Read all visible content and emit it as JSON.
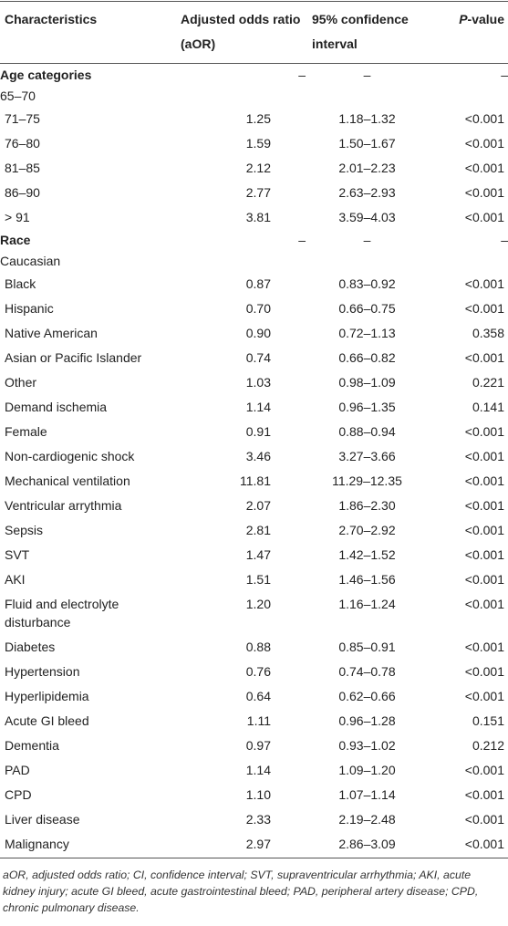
{
  "table": {
    "header": [
      "Characteristics",
      "Adjusted odds ratio (aOR)",
      "95% confidence interval",
      "P-value"
    ],
    "rows": [
      {
        "cells": [
          "Age categories",
          "–",
          "–",
          "–"
        ],
        "group": true
      },
      {
        "cells": [
          "65–70"
        ]
      },
      {
        "cells": [
          "71–75",
          "1.25",
          "1.18–1.32",
          "<0.001"
        ]
      },
      {
        "cells": [
          "76–80",
          "1.59",
          "1.50–1.67",
          "<0.001"
        ]
      },
      {
        "cells": [
          "81–85",
          "2.12",
          "2.01–2.23",
          "<0.001"
        ]
      },
      {
        "cells": [
          "86–90",
          "2.77",
          "2.63–2.93",
          "<0.001"
        ]
      },
      {
        "cells": [
          "> 91",
          "3.81",
          "3.59–4.03",
          "<0.001"
        ]
      },
      {
        "cells": [
          "Race",
          "–",
          "–",
          "–"
        ],
        "group": true
      },
      {
        "cells": [
          "Caucasian"
        ]
      },
      {
        "cells": [
          "Black",
          "0.87",
          "0.83–0.92",
          "<0.001"
        ]
      },
      {
        "cells": [
          "Hispanic",
          "0.70",
          "0.66–0.75",
          "<0.001"
        ]
      },
      {
        "cells": [
          "Native American",
          "0.90",
          "0.72–1.13",
          "0.358"
        ]
      },
      {
        "cells": [
          "Asian or Pacific Islander",
          "0.74",
          "0.66–0.82",
          "<0.001"
        ]
      },
      {
        "cells": [
          "Other",
          "1.03",
          "0.98–1.09",
          "0.221"
        ]
      },
      {
        "cells": [
          "Demand ischemia",
          "1.14",
          "0.96–1.35",
          "0.141"
        ]
      },
      {
        "cells": [
          "Female",
          "0.91",
          "0.88–0.94",
          "<0.001"
        ]
      },
      {
        "cells": [
          "Non-cardiogenic shock",
          "3.46",
          "3.27–3.66",
          "<0.001"
        ]
      },
      {
        "cells": [
          "Mechanical ventilation",
          "11.81",
          "11.29–12.35",
          "<0.001"
        ]
      },
      {
        "cells": [
          "Ventricular arrythmia",
          "2.07",
          "1.86–2.30",
          "<0.001"
        ]
      },
      {
        "cells": [
          "Sepsis",
          "2.81",
          "2.70–2.92",
          "<0.001"
        ]
      },
      {
        "cells": [
          "SVT",
          "1.47",
          "1.42–1.52",
          "<0.001"
        ]
      },
      {
        "cells": [
          "AKI",
          "1.51",
          "1.46–1.56",
          "<0.001"
        ]
      },
      {
        "cells": [
          "Fluid and electrolyte disturbance",
          "1.20",
          "1.16–1.24",
          "<0.001"
        ]
      },
      {
        "cells": [
          "Diabetes",
          "0.88",
          "0.85–0.91",
          "<0.001"
        ]
      },
      {
        "cells": [
          "Hypertension",
          "0.76",
          "0.74–0.78",
          "<0.001"
        ]
      },
      {
        "cells": [
          "Hyperlipidemia",
          "0.64",
          "0.62–0.66",
          "<0.001"
        ]
      },
      {
        "cells": [
          "Acute GI bleed",
          "1.11",
          "0.96–1.28",
          "0.151"
        ]
      },
      {
        "cells": [
          "Dementia",
          "0.97",
          "0.93–1.02",
          "0.212"
        ]
      },
      {
        "cells": [
          "PAD",
          "1.14",
          "1.09–1.20",
          "<0.001"
        ]
      },
      {
        "cells": [
          "CPD",
          "1.10",
          "1.07–1.14",
          "<0.001"
        ]
      },
      {
        "cells": [
          "Liver disease",
          "2.33",
          "2.19–2.48",
          "<0.001"
        ]
      },
      {
        "cells": [
          "Malignancy",
          "2.97",
          "2.86–3.09",
          "<0.001"
        ]
      }
    ]
  },
  "footnote": "aOR, adjusted odds ratio; CI, confidence interval; SVT, supraventricular arrhythmia; AKI, acute kidney injury; acute GI bleed, acute gastrointestinal bleed; PAD, peripheral artery disease; CPD, chronic pulmonary disease."
}
